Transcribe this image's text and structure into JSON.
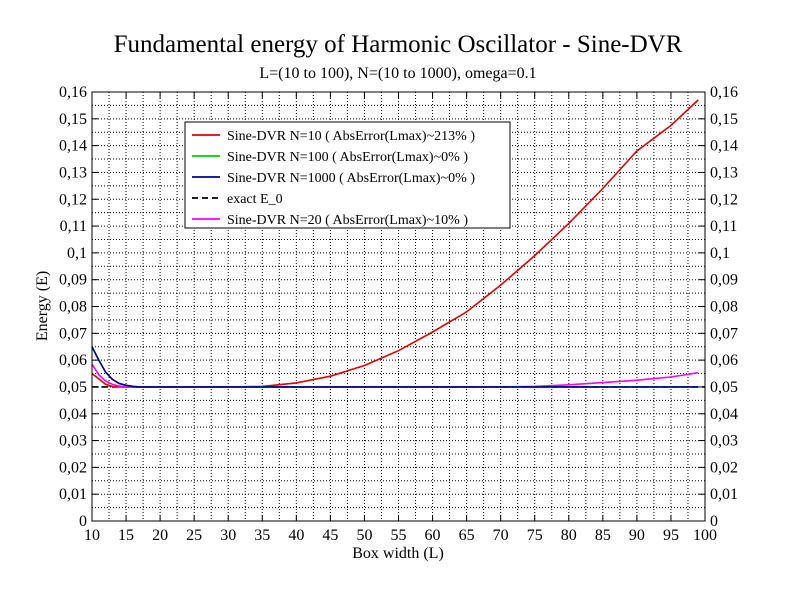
{
  "chart_data": {
    "type": "line",
    "title": "Fundamental energy of Harmonic Oscillator - Sine-DVR",
    "subtitle": "L=(10 to 100), N=(10 to 1000), omega=0.1",
    "xlabel": "Box width (L)",
    "ylabel": "Energy (E)",
    "xlim": [
      10,
      100
    ],
    "ylim": [
      0,
      0.16
    ],
    "x_ticks": [
      "10",
      "15",
      "20",
      "25",
      "30",
      "35",
      "40",
      "45",
      "50",
      "55",
      "60",
      "65",
      "70",
      "75",
      "80",
      "85",
      "90",
      "95",
      "100"
    ],
    "y_ticks": [
      "0",
      "0,01",
      "0,02",
      "0,03",
      "0,04",
      "0,05",
      "0,06",
      "0,07",
      "0,08",
      "0,09",
      "0,1",
      "0,11",
      "0,12",
      "0,13",
      "0,14",
      "0,15",
      "0,16"
    ],
    "grid": true,
    "legend_position": "top-left",
    "series": [
      {
        "name": "Sine-DVR N=10 ( AbsError(Lmax)~213% )",
        "color": "#e00000",
        "dash": "solid",
        "x": [
          10,
          11,
          12,
          13,
          14,
          15,
          20,
          25,
          30,
          35,
          40,
          45,
          50,
          55,
          60,
          65,
          70,
          75,
          80,
          85,
          90,
          95,
          99
        ],
        "y": [
          0.055,
          0.053,
          0.051,
          0.0502,
          0.05,
          0.05,
          0.05,
          0.05,
          0.05,
          0.0502,
          0.0515,
          0.054,
          0.058,
          0.0635,
          0.0705,
          0.078,
          0.088,
          0.099,
          0.111,
          0.124,
          0.138,
          0.1475,
          0.157
        ]
      },
      {
        "name": "Sine-DVR N=100 ( AbsError(Lmax)~0% )",
        "color": "#00d000",
        "dash": "solid",
        "x": [
          10,
          11,
          12,
          13,
          14,
          15,
          16,
          17,
          20,
          30,
          40,
          50,
          60,
          70,
          80,
          90,
          99
        ],
        "y": [
          0.065,
          0.06,
          0.0555,
          0.0528,
          0.0513,
          0.0506,
          0.0502,
          0.05,
          0.05,
          0.05,
          0.05,
          0.05,
          0.05,
          0.05,
          0.05,
          0.05,
          0.05
        ]
      },
      {
        "name": "Sine-DVR N=1000 ( AbsError(Lmax)~0% )",
        "color": "#000090",
        "dash": "solid",
        "x": [
          10,
          11,
          12,
          13,
          14,
          15,
          16,
          17,
          20,
          30,
          40,
          50,
          60,
          70,
          80,
          90,
          99
        ],
        "y": [
          0.065,
          0.06,
          0.0555,
          0.0528,
          0.0513,
          0.0506,
          0.0502,
          0.05,
          0.05,
          0.05,
          0.05,
          0.05,
          0.05,
          0.05,
          0.05,
          0.05,
          0.05
        ]
      },
      {
        "name": "exact E_0",
        "color": "#000000",
        "dash": "dashed",
        "x": [
          10,
          100
        ],
        "y": [
          0.05,
          0.05
        ]
      },
      {
        "name": "Sine-DVR N=20 ( AbsError(Lmax)~10% )",
        "color": "#ff00ff",
        "dash": "solid",
        "x": [
          10,
          11,
          12,
          13,
          14,
          15,
          20,
          30,
          40,
          50,
          60,
          70,
          75,
          80,
          85,
          90,
          95,
          99
        ],
        "y": [
          0.0585,
          0.0545,
          0.0522,
          0.051,
          0.0503,
          0.05,
          0.05,
          0.05,
          0.05,
          0.05,
          0.05,
          0.05,
          0.0502,
          0.0508,
          0.0516,
          0.0525,
          0.0537,
          0.0553
        ]
      }
    ]
  }
}
